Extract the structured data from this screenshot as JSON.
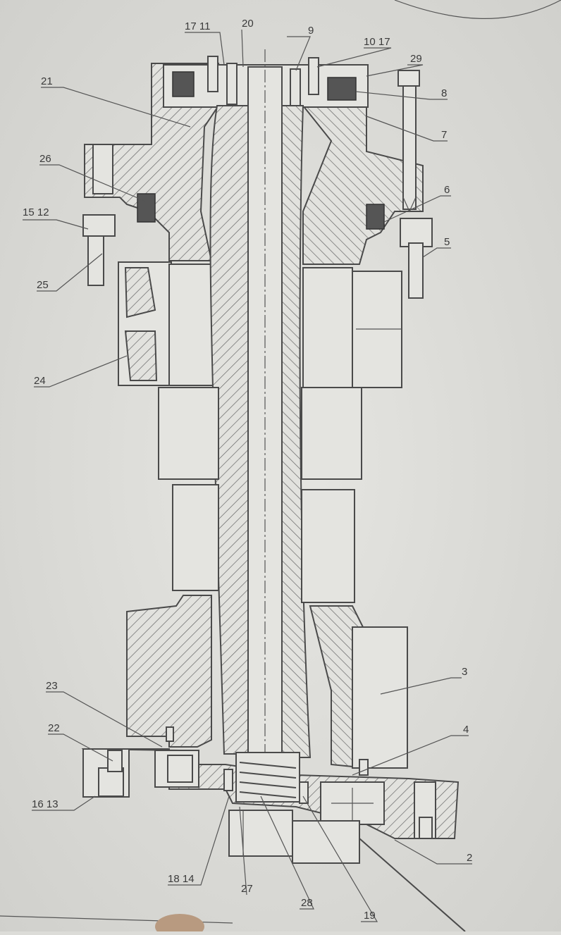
{
  "drawing": {
    "labels": [
      {
        "id": "l-17-11",
        "text": "17 11"
      },
      {
        "id": "l-20",
        "text": "20"
      },
      {
        "id": "l-9",
        "text": "9"
      },
      {
        "id": "l-10-17",
        "text": "10 17"
      },
      {
        "id": "l-29",
        "text": "29"
      },
      {
        "id": "l-21",
        "text": "21"
      },
      {
        "id": "l-8",
        "text": "8"
      },
      {
        "id": "l-7",
        "text": "7"
      },
      {
        "id": "l-26",
        "text": "26"
      },
      {
        "id": "l-6",
        "text": "6"
      },
      {
        "id": "l-15-12",
        "text": "15 12"
      },
      {
        "id": "l-5",
        "text": "5"
      },
      {
        "id": "l-25",
        "text": "25"
      },
      {
        "id": "l-24",
        "text": "24"
      },
      {
        "id": "l-3",
        "text": "3"
      },
      {
        "id": "l-23",
        "text": "23"
      },
      {
        "id": "l-4",
        "text": "4"
      },
      {
        "id": "l-22",
        "text": "22"
      },
      {
        "id": "l-16-13",
        "text": "16 13"
      },
      {
        "id": "l-2",
        "text": "2"
      },
      {
        "id": "l-18-14",
        "text": "18 14"
      },
      {
        "id": "l-27",
        "text": "27"
      },
      {
        "id": "l-28",
        "text": "28"
      },
      {
        "id": "l-19",
        "text": "19"
      }
    ]
  }
}
